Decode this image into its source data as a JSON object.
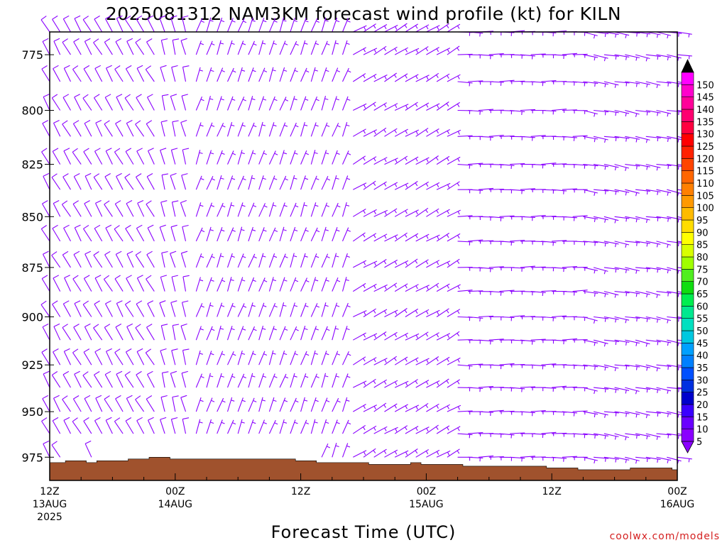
{
  "chart_data": {
    "type": "wind barb profile",
    "title": "2025081312 NAM3KM forecast wind profile (kt) for KILN",
    "xlabel": "Forecast Time (UTC)",
    "ylabel": "",
    "credit": "coolwx.com/models",
    "y_axis": {
      "unit": "hPa",
      "range": [
        988,
        765
      ],
      "ticks": [
        775,
        800,
        825,
        850,
        875,
        900,
        925,
        950,
        975
      ],
      "tick_labels": [
        "775",
        "800",
        "825",
        "850",
        "875",
        "900",
        "925",
        "950",
        "975"
      ],
      "barb_levels": [
        765,
        775,
        787,
        800,
        812,
        825,
        837,
        850,
        862,
        875,
        887,
        900,
        912,
        925,
        937,
        950,
        962,
        975
      ]
    },
    "x_axis": {
      "range_hours": [
        0,
        60
      ],
      "hours_per_step": 1,
      "ticks": [
        {
          "hour": 0,
          "lines": [
            "12Z",
            "13AUG",
            "2025"
          ]
        },
        {
          "hour": 12,
          "lines": [
            "00Z",
            "14AUG"
          ]
        },
        {
          "hour": 24,
          "lines": [
            "12Z"
          ]
        },
        {
          "hour": 36,
          "lines": [
            "00Z",
            "15AUG"
          ]
        },
        {
          "hour": 48,
          "lines": [
            "12Z"
          ]
        },
        {
          "hour": 60,
          "lines": [
            "00Z",
            "16AUG"
          ]
        }
      ]
    },
    "terrain": {
      "color": "#a0522d",
      "surface_pressure_hpa": [
        978,
        978,
        977,
        977,
        978,
        977,
        977,
        977,
        976,
        976,
        975,
        975,
        976,
        976,
        976,
        976,
        976,
        976,
        976,
        976,
        976,
        976,
        976,
        976,
        977,
        977,
        978,
        978,
        978,
        978,
        978,
        979,
        979,
        979,
        979,
        978,
        979,
        979,
        979,
        979,
        980,
        980,
        980,
        980,
        980,
        980,
        980,
        980,
        981,
        981,
        981,
        982,
        982,
        982,
        982,
        982,
        981,
        981,
        981,
        981,
        982
      ]
    },
    "colorbar": {
      "labels": [
        "5",
        "10",
        "15",
        "20",
        "25",
        "30",
        "35",
        "40",
        "45",
        "50",
        "55",
        "60",
        "65",
        "70",
        "75",
        "80",
        "85",
        "90",
        "95",
        "100",
        "105",
        "110",
        "115",
        "120",
        "125",
        "130",
        "135",
        "140",
        "145",
        "150"
      ],
      "colors": [
        "#8a00ff",
        "#6a00ff",
        "#3a00ff",
        "#0000cc",
        "#0030e0",
        "#0050ff",
        "#0080ff",
        "#00a0ff",
        "#00c8e0",
        "#00e0c0",
        "#00e890",
        "#00ee50",
        "#10dd10",
        "#50ee20",
        "#a0ff00",
        "#d8ff00",
        "#ffff00",
        "#ffdd00",
        "#ffbb00",
        "#ff9900",
        "#ff8000",
        "#ff6600",
        "#ff4400",
        "#ff2200",
        "#ff0000",
        "#ff0040",
        "#ff0070",
        "#ff0099",
        "#ff00cc",
        "#ff00ff"
      ],
      "under_color": "#8a00ff",
      "over_color": "#000000"
    },
    "wind_regimes": [
      {
        "hours": [
          0,
          10
        ],
        "direction_deg": 330,
        "speed_kt": 10
      },
      {
        "hours": [
          11,
          13
        ],
        "direction_deg": 345,
        "speed_kt": 12
      },
      {
        "hours": [
          14,
          28
        ],
        "direction_deg": 20,
        "speed_kt": 8
      },
      {
        "hours": [
          29,
          38
        ],
        "direction_deg": 60,
        "speed_kt": 8
      },
      {
        "hours": [
          39,
          50
        ],
        "direction_deg": 90,
        "speed_kt": 8
      },
      {
        "hours": [
          51,
          60
        ],
        "direction_deg": 100,
        "speed_kt": 8
      }
    ]
  }
}
